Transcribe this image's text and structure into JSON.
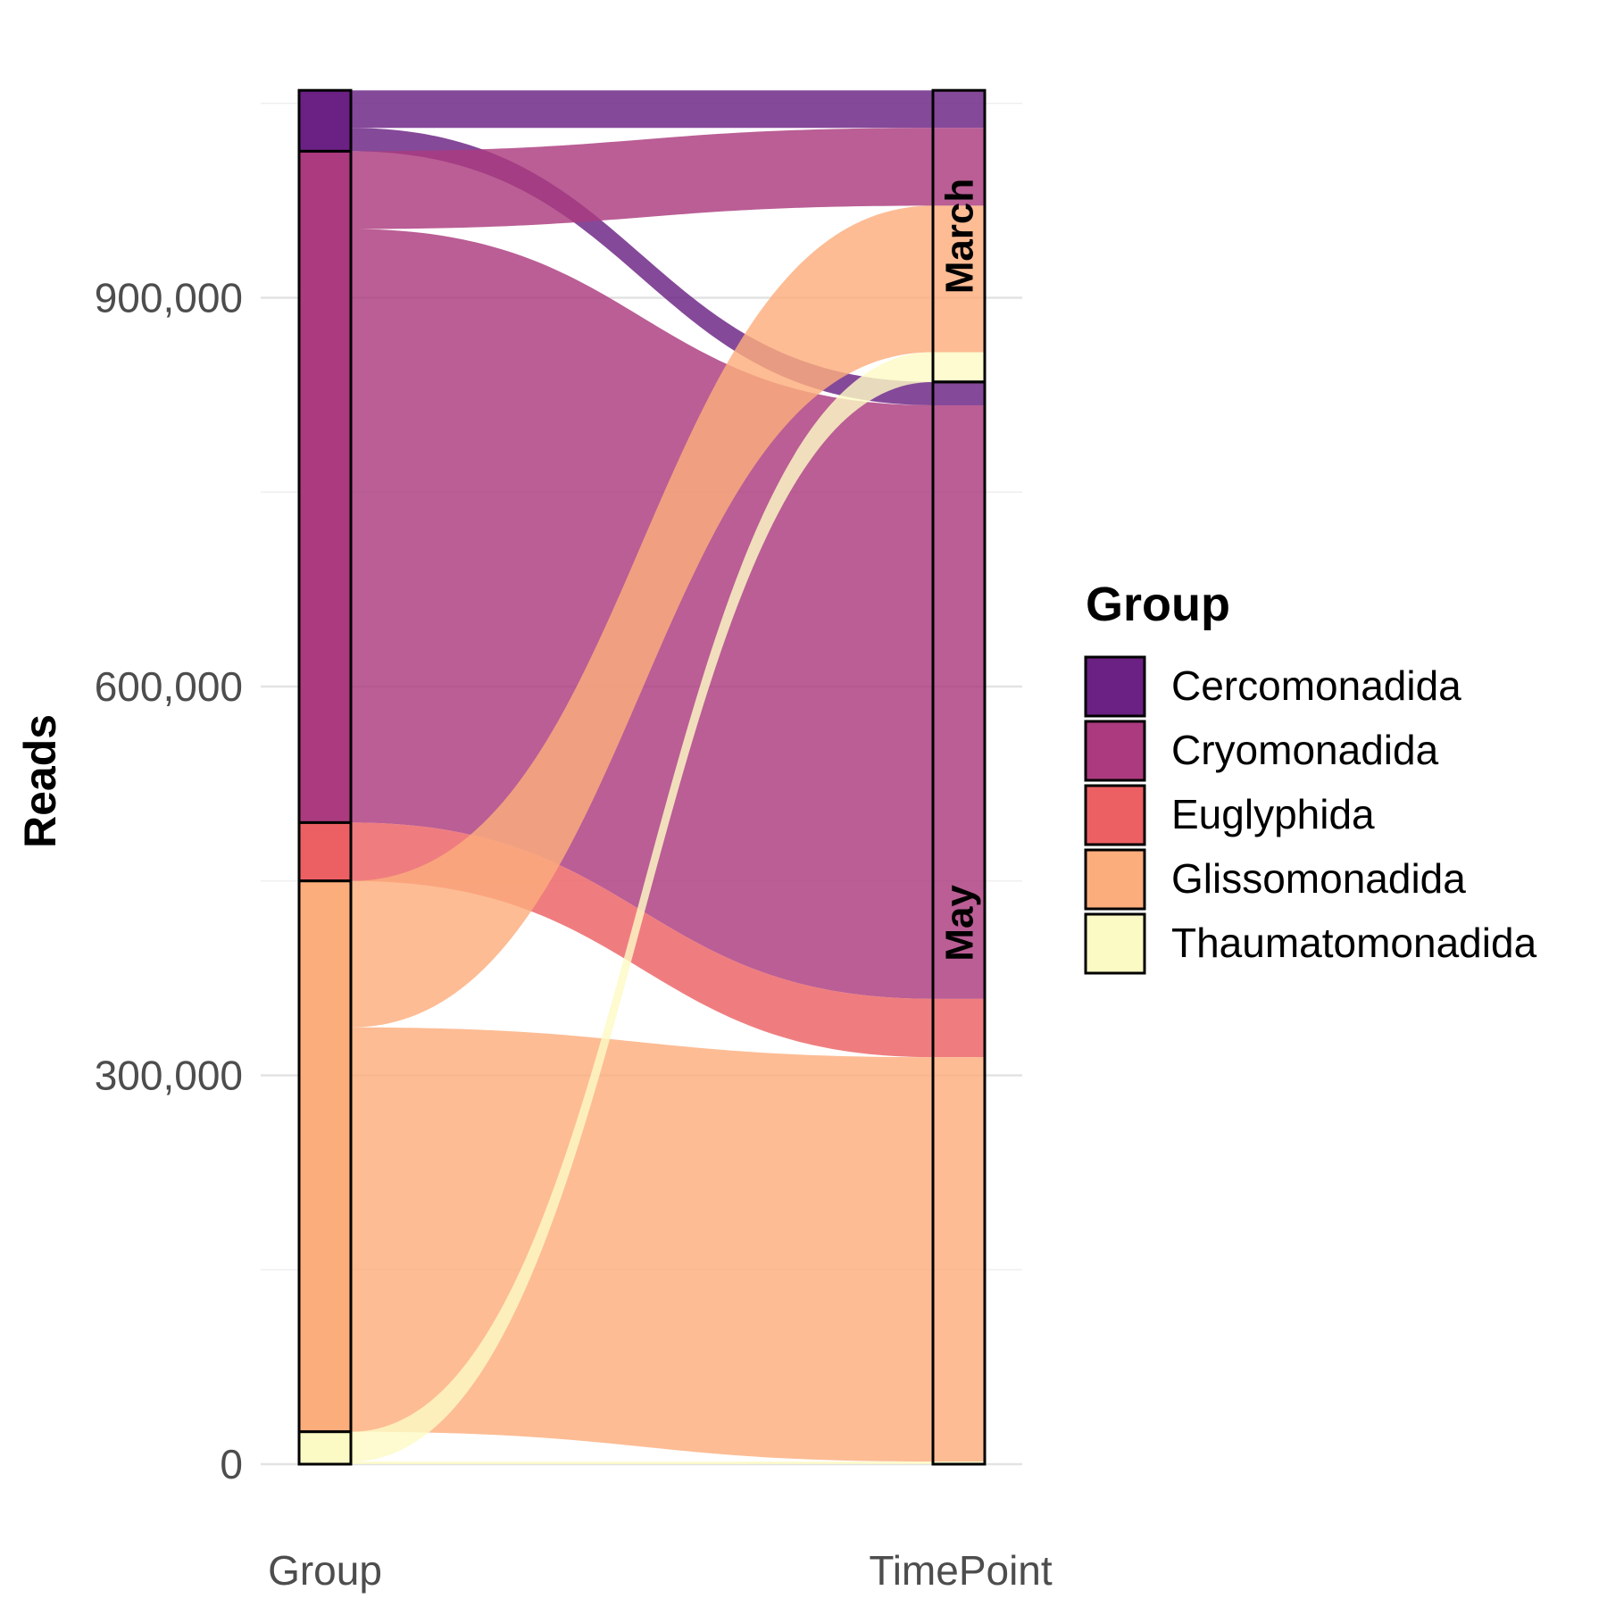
{
  "chart_data": {
    "type": "alluvial",
    "ylabel": "Reads",
    "axes": [
      "Group",
      "TimePoint"
    ],
    "y_ticks": [
      0,
      300000,
      600000,
      900000
    ],
    "y_tick_labels": [
      "0",
      "300,000",
      "600,000",
      "900,000"
    ],
    "ylim": [
      0,
      1060000
    ],
    "grid": true,
    "legend": {
      "title": "Group",
      "position": "right",
      "entries": [
        {
          "name": "Cercomonadida",
          "color": "#6a2183"
        },
        {
          "name": "Cryomonadida",
          "color": "#ab3a7e"
        },
        {
          "name": "Euglyphida",
          "color": "#ec6063"
        },
        {
          "name": "Glissomonadida",
          "color": "#fcad7c"
        },
        {
          "name": "Thaumatomonadida",
          "color": "#fcfac4"
        }
      ]
    },
    "group_strata": [
      {
        "name": "Cercomonadida",
        "value": 47000
      },
      {
        "name": "Cryomonadida",
        "value": 518000
      },
      {
        "name": "Euglyphida",
        "value": 45000
      },
      {
        "name": "Glissomonadida",
        "value": 425000
      },
      {
        "name": "Thaumatomonadida",
        "value": 25000
      }
    ],
    "timepoint_strata": [
      {
        "name": "March",
        "value": 225000
      },
      {
        "name": "May",
        "value": 835000
      }
    ],
    "flows": [
      {
        "group": "Cercomonadida",
        "timepoint": "May",
        "value": 18000
      },
      {
        "group": "Cercomonadida",
        "timepoint": "March",
        "value": 29000
      },
      {
        "group": "Cryomonadida",
        "timepoint": "May",
        "value": 458000
      },
      {
        "group": "Cryomonadida",
        "timepoint": "March",
        "value": 60000
      },
      {
        "group": "Euglyphida",
        "timepoint": "May",
        "value": 45000
      },
      {
        "group": "Glissomonadida",
        "timepoint": "May",
        "value": 312000
      },
      {
        "group": "Glissomonadida",
        "timepoint": "March",
        "value": 113000
      },
      {
        "group": "Thaumatomonadida",
        "timepoint": "May",
        "value": 2000
      },
      {
        "group": "Thaumatomonadida",
        "timepoint": "March",
        "value": 23000
      }
    ]
  }
}
